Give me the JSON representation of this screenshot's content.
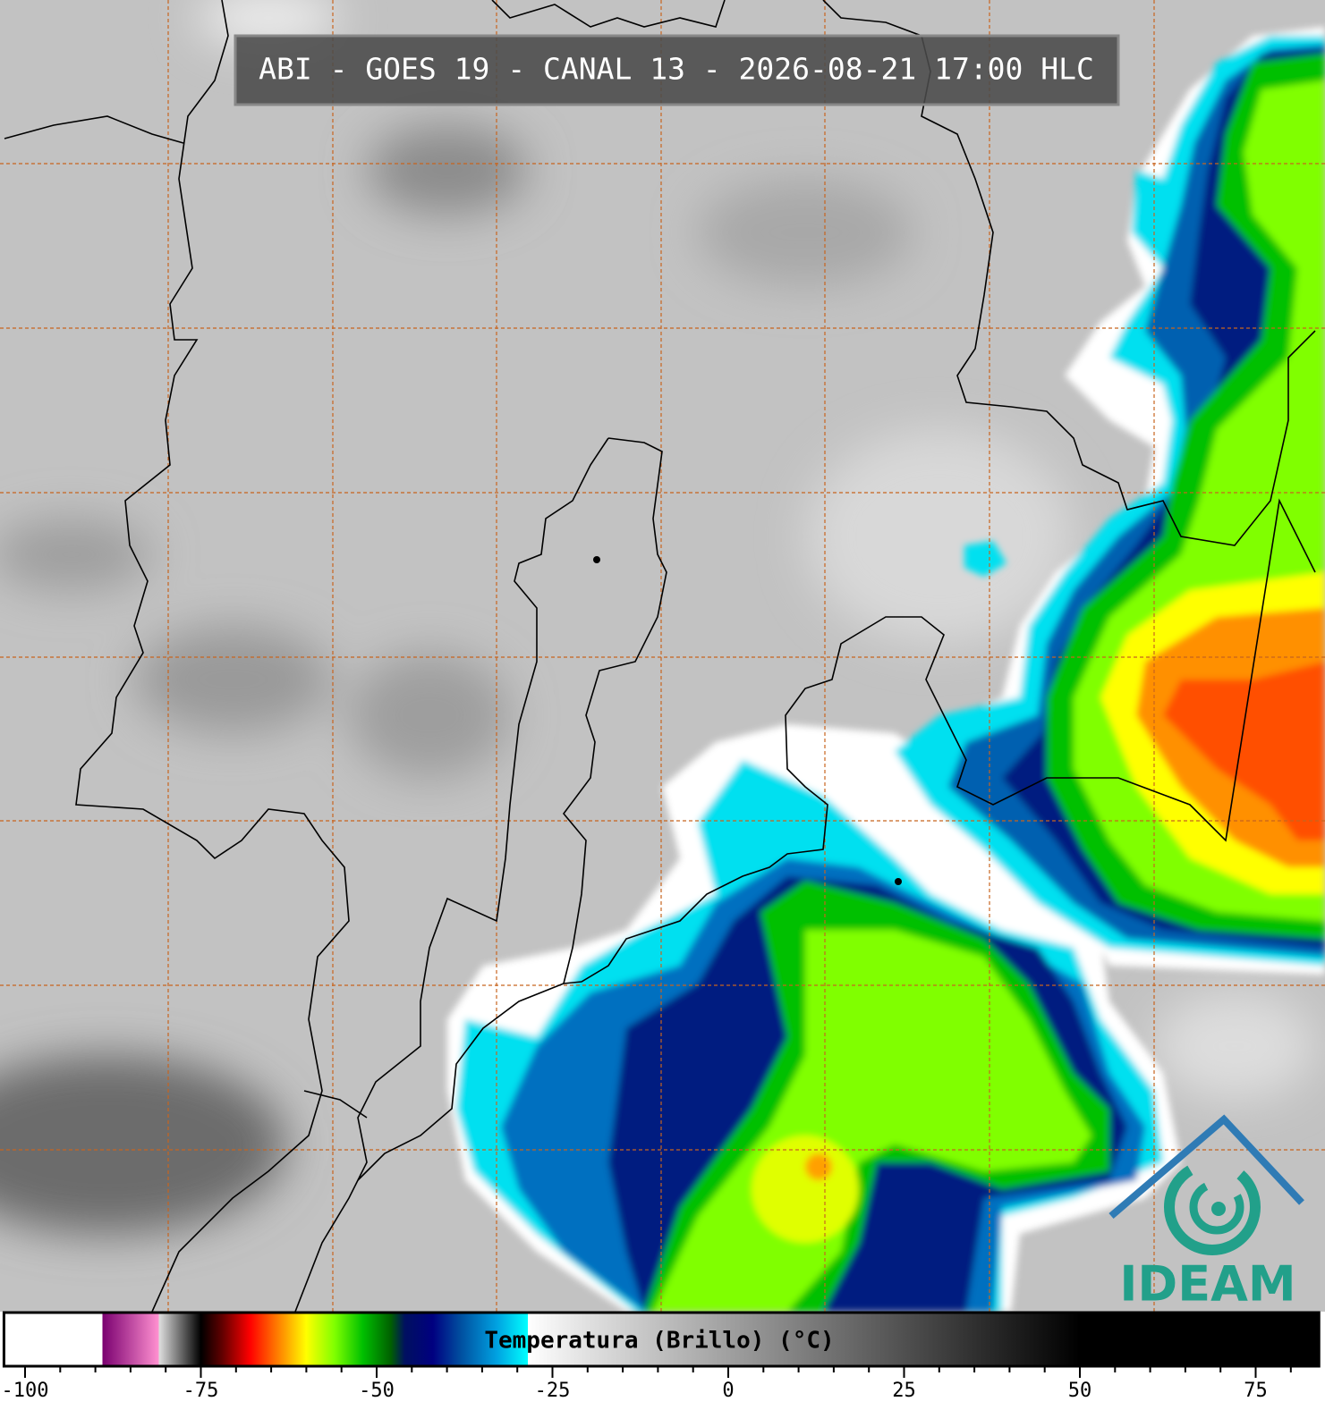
{
  "header": {
    "title": "ABI - GOES 19 - CANAL 13 - 2026-08-21 17:00 HLC"
  },
  "colorbar": {
    "label": "Temperatura (Brillo) (°C)",
    "lim": [
      -103,
      84
    ],
    "ticks": [
      -100,
      -75,
      -50,
      -25,
      0,
      25,
      50,
      75
    ],
    "minor_ticks": [
      -95,
      -90,
      -85,
      -80,
      -70,
      -65,
      -60,
      -55,
      -45,
      -40,
      -35,
      -30,
      -20,
      -15,
      -10,
      -5,
      5,
      10,
      15,
      20,
      30,
      35,
      40,
      45,
      55,
      60,
      65,
      70,
      80
    ],
    "stops": [
      {
        "value": -103,
        "color": "#ffffff"
      },
      {
        "value": -89,
        "color": "#ffffff"
      },
      {
        "value": -89,
        "color": "#7a0070"
      },
      {
        "value": -81,
        "color": "#ff90d0"
      },
      {
        "value": -81,
        "color": "#e0e0e0"
      },
      {
        "value": -75,
        "color": "#000000"
      },
      {
        "value": -72,
        "color": "#600000"
      },
      {
        "value": -68,
        "color": "#ff0000"
      },
      {
        "value": -64,
        "color": "#ff8000"
      },
      {
        "value": -60,
        "color": "#ffff00"
      },
      {
        "value": -56,
        "color": "#80ff00"
      },
      {
        "value": -52,
        "color": "#00c000"
      },
      {
        "value": -48,
        "color": "#006000"
      },
      {
        "value": -46,
        "color": "#001060"
      },
      {
        "value": -42,
        "color": "#000080"
      },
      {
        "value": -38,
        "color": "#0050a0"
      },
      {
        "value": -33,
        "color": "#00a0e0"
      },
      {
        "value": -28.5,
        "color": "#00ffff"
      },
      {
        "value": -28.5,
        "color": "#ffffff"
      },
      {
        "value": -20,
        "color": "#e0e0e0"
      },
      {
        "value": 50,
        "color": "#000000"
      },
      {
        "value": 84,
        "color": "#000000"
      }
    ]
  },
  "logo": {
    "text": "IDEAM"
  }
}
